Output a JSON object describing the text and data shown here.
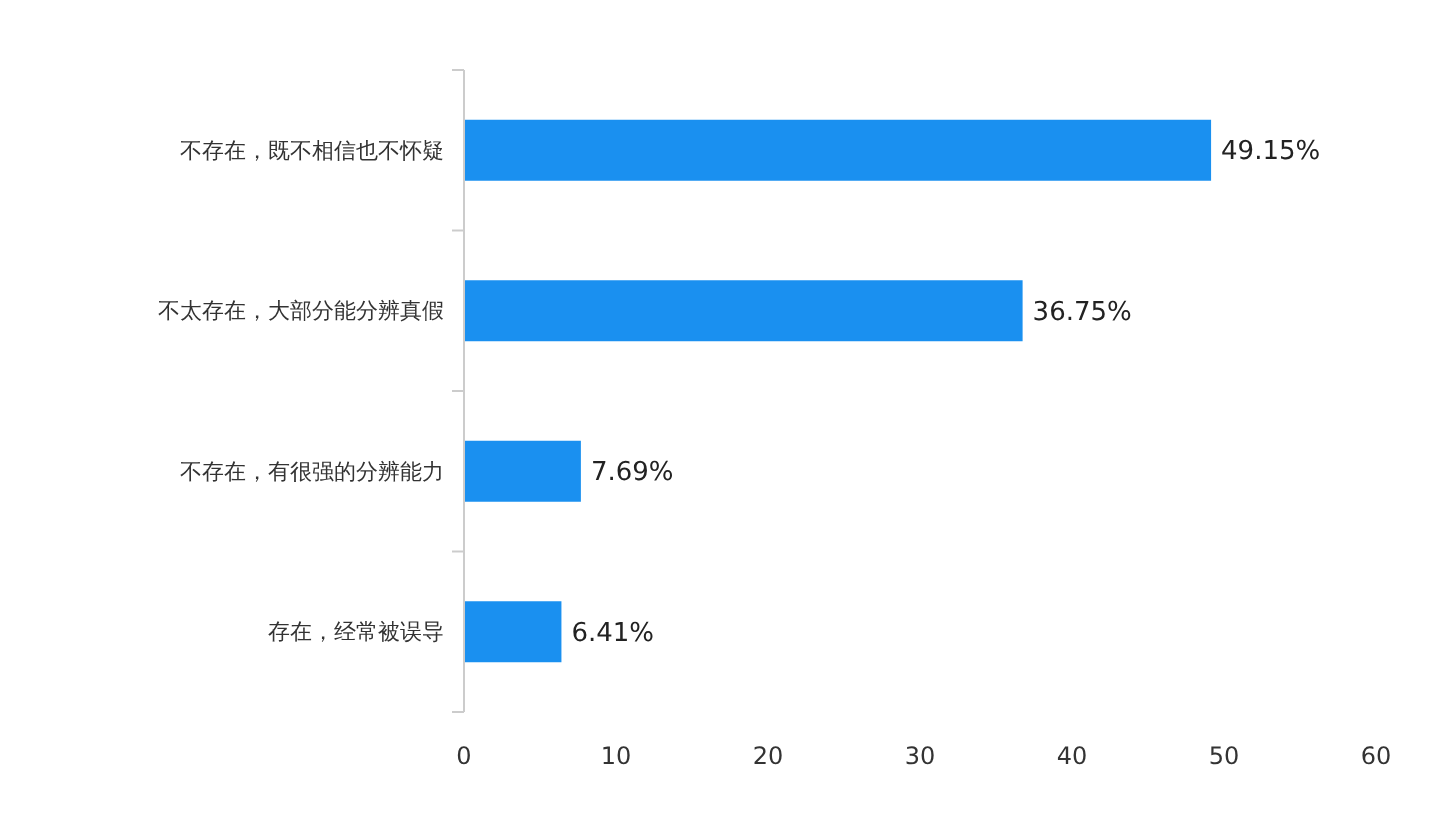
{
  "chart_data": {
    "type": "bar",
    "orientation": "horizontal",
    "categories": [
      "不存在，既不相信也不怀疑",
      "不太存在，大部分能分辨真假",
      "不存在，有很强的分辨能力",
      "存在，经常被误导"
    ],
    "values": [
      49.15,
      36.75,
      7.69,
      6.41
    ],
    "value_labels": [
      "49.15%",
      "36.75%",
      "7.69%",
      "6.41%"
    ],
    "color": "#1a90f0",
    "xlim": [
      0,
      60
    ],
    "xticks": [
      0,
      10,
      20,
      30,
      40,
      50,
      60
    ],
    "grid": false
  }
}
